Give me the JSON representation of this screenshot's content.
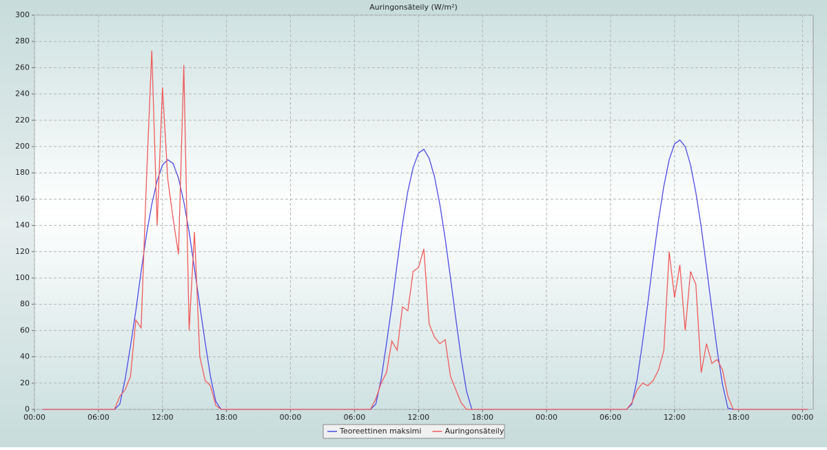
{
  "chart_data": {
    "type": "line",
    "title": "Auringonsäteily (W/m²)",
    "x": [
      0.75,
      7.5,
      8,
      8.5,
      9,
      9.5,
      10,
      10.5,
      11,
      11.5,
      12,
      12.5,
      13,
      13.5,
      14,
      14.5,
      15,
      15.5,
      16,
      16.5,
      17,
      17.5,
      31.5,
      32,
      32.5,
      33,
      33.5,
      34,
      34.5,
      35,
      35.5,
      36,
      36.5,
      37,
      37.5,
      38,
      38.5,
      39,
      39.5,
      40,
      40.5,
      41,
      41.5,
      55.5,
      56,
      56.5,
      57,
      57.5,
      58,
      58.5,
      59,
      59.5,
      60,
      60.5,
      61,
      61.5,
      62,
      62.5,
      63,
      63.5,
      64,
      64.5,
      65,
      65.5,
      72.5
    ],
    "series": [
      {
        "name": "Teoreettinen maksimi",
        "color": "#4b4be6",
        "values": [
          0,
          0,
          4,
          23,
          48,
          75,
          105,
          133,
          156,
          174,
          186,
          190,
          187,
          176,
          158,
          135,
          107,
          79,
          51,
          25,
          6,
          0,
          0,
          4,
          23,
          50,
          79,
          111,
          141,
          166,
          184,
          195,
          198,
          191,
          177,
          156,
          130,
          100,
          69,
          39,
          14,
          0,
          0,
          0,
          4,
          23,
          51,
          81,
          114,
          144,
          170,
          190,
          202,
          205,
          200,
          186,
          165,
          139,
          108,
          76,
          45,
          19,
          1,
          0,
          0
        ]
      },
      {
        "name": "Auringonsäteily",
        "color": "#f05a5a",
        "values": [
          0,
          0,
          10,
          15,
          25,
          68,
          62,
          175,
          273,
          140,
          245,
          175,
          145,
          118,
          262,
          60,
          135,
          40,
          22,
          18,
          3,
          0,
          0,
          8,
          20,
          28,
          52,
          45,
          78,
          75,
          105,
          108,
          122,
          65,
          55,
          50,
          53,
          25,
          15,
          5,
          0,
          0,
          0,
          0,
          5,
          15,
          20,
          18,
          22,
          30,
          45,
          120,
          85,
          110,
          60,
          105,
          95,
          28,
          50,
          35,
          38,
          30,
          10,
          0,
          0
        ]
      }
    ],
    "xlim": [
      0,
      73
    ],
    "ylim": [
      0,
      300
    ],
    "xticks": [
      {
        "value": 0,
        "label": "00:00"
      },
      {
        "value": 6,
        "label": "06:00"
      },
      {
        "value": 12,
        "label": "12:00"
      },
      {
        "value": 18,
        "label": "18:00"
      },
      {
        "value": 24,
        "label": "00:00"
      },
      {
        "value": 30,
        "label": "06:00"
      },
      {
        "value": 36,
        "label": "12:00"
      },
      {
        "value": 42,
        "label": "18:00"
      },
      {
        "value": 48,
        "label": "00:00"
      },
      {
        "value": 54,
        "label": "06:00"
      },
      {
        "value": 60,
        "label": "12:00"
      },
      {
        "value": 66,
        "label": "18:00"
      },
      {
        "value": 72,
        "label": "00:00"
      }
    ],
    "yticks": [
      0,
      20,
      40,
      60,
      80,
      100,
      120,
      140,
      160,
      180,
      200,
      220,
      240,
      260,
      280,
      300
    ],
    "grid": true,
    "legend": "bottom"
  }
}
